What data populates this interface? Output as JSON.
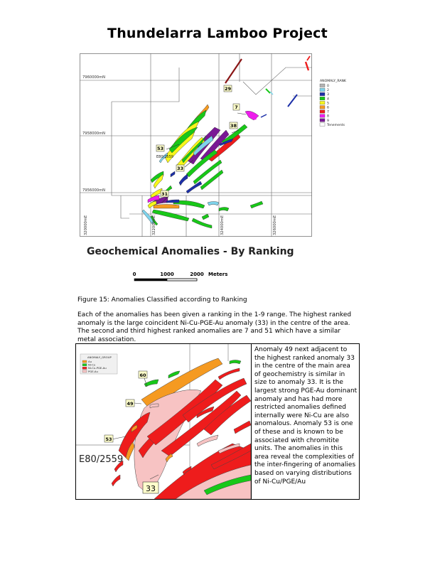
{
  "title": "Thundelarra Lamboo Project",
  "map1": {
    "northing_labels": [
      "7960000mN",
      "7958000mN",
      "7956000mN"
    ],
    "easting_labels": [
      "320000mE",
      "322000mE",
      "324000mE",
      "326000mE"
    ],
    "anomaly_labels": [
      "29",
      "7",
      "38",
      "53",
      "33",
      "31"
    ],
    "tenement_label": "E80/2559",
    "legend": {
      "title": "ANOMALY_RANK",
      "items": [
        {
          "label": "0",
          "color": "#b3b3b3"
        },
        {
          "label": "2",
          "color": "#7fd4ec"
        },
        {
          "label": "3",
          "color": "#1c2fa8"
        },
        {
          "label": "4",
          "color": "#18c818"
        },
        {
          "label": "5",
          "color": "#f7f71a"
        },
        {
          "label": "6",
          "color": "#f59a21"
        },
        {
          "label": "7",
          "color": "#ee1c1c"
        },
        {
          "label": "8",
          "color": "#ee1ced"
        },
        {
          "label": "9",
          "color": "#7a1895"
        },
        {
          "label": "Tenements",
          "color": "#ffffff"
        }
      ]
    }
  },
  "map_subtitle": "Geochemical Anomalies - By Ranking",
  "scale": {
    "ticks": [
      "0",
      "1000",
      "2000"
    ],
    "unit": "Meters"
  },
  "caption": "Figure 15: Anomalies Classified according to Ranking",
  "paragraph": "Each of the anomalies has been given a ranking in the 1-9 range. The highest ranked anomaly is the large coincident Ni-Cu-PGE-Au anomaly (33) in the centre of the area. The second and third highest ranked anomalies are 7 and 51 which have a similar metal association.",
  "inset": {
    "legend_title": "ANOMALY_GROUP",
    "legend_items": [
      {
        "label": "Au",
        "color": "#f59a21"
      },
      {
        "label": "Ni-Cu",
        "color": "#18c818"
      },
      {
        "label": "Ni-Cu-PGE-Au",
        "color": "#ee1c1c"
      },
      {
        "label": "PGE-Au",
        "color": "#f7c3c3"
      }
    ],
    "anomaly_labels": [
      "60",
      "49",
      "53",
      "33"
    ],
    "tenement_label": "E80/2559"
  },
  "side_text": "Anomaly 49 next adjacent to the highest ranked anomaly 33 in the centre of the main area of geochemistry is similar in size to anomaly 33. It is the largest strong PGE-Au dominant anomaly and has had more restricted anomalies defined internally were Ni-Cu are also anomalous. Anomaly 53 is one of these and is known to be associated with chromitite units. The anomalies in this area reveal the complexities of the inter-fingering of anomalies based on varying distributions of Ni-Cu/PGE/Au"
}
